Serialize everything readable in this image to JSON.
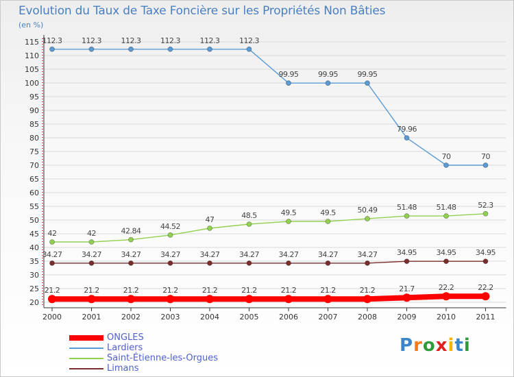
{
  "chart_data": {
    "type": "line",
    "title": "Evolution du Taux de Taxe Foncière sur les Propriétés Non Bâties",
    "unit_label": "(en %)",
    "xlabel": "",
    "ylabel": "",
    "ylim": [
      20,
      115
    ],
    "y_ticks": [
      20,
      25,
      30,
      35,
      40,
      45,
      50,
      55,
      60,
      65,
      70,
      75,
      80,
      85,
      90,
      95,
      100,
      105,
      110,
      115
    ],
    "categories": [
      "2000",
      "2001",
      "2002",
      "2003",
      "2004",
      "2005",
      "2006",
      "2007",
      "2008",
      "2009",
      "2010",
      "2011"
    ],
    "series": [
      {
        "name": "ONGLES",
        "color": "#ff0000",
        "values": [
          21.2,
          21.2,
          21.2,
          21.2,
          21.2,
          21.2,
          21.2,
          21.2,
          21.2,
          21.7,
          22.2,
          22.2
        ],
        "labels": [
          "21.2",
          "21.2",
          "21.2",
          "21.2",
          "21.2",
          "21.2",
          "21.2",
          "21.2",
          "21.2",
          "21.7",
          "22.2",
          "22.2"
        ]
      },
      {
        "name": "Lardiers",
        "color": "#5b9bd5",
        "values": [
          112.3,
          112.3,
          112.3,
          112.3,
          112.3,
          112.3,
          99.95,
          99.95,
          99.95,
          79.96,
          70,
          70
        ],
        "labels": [
          "112.3",
          "112.3",
          "112.3",
          "112.3",
          "112.3",
          "112.3",
          "99.95",
          "99.95",
          "99.95",
          "79.96",
          "70",
          "70"
        ]
      },
      {
        "name": "Saint-Étienne-les-Orgues",
        "color": "#92d050",
        "values": [
          42,
          42,
          42.84,
          44.52,
          47,
          48.5,
          49.5,
          49.5,
          50.49,
          51.48,
          51.48,
          52.3
        ],
        "labels": [
          "42",
          "42",
          "42.84",
          "44.52",
          "47",
          "48.5",
          "49.5",
          "49.5",
          "50.49",
          "51.48",
          "51.48",
          "52.3"
        ]
      },
      {
        "name": "Limans",
        "color": "#7b2c2c",
        "values": [
          34.27,
          34.27,
          34.27,
          34.27,
          34.27,
          34.27,
          34.27,
          34.27,
          34.27,
          34.95,
          34.95,
          34.95
        ],
        "labels": [
          "34.27",
          "34.27",
          "34.27",
          "34.27",
          "34.27",
          "34.27",
          "34.27",
          "34.27",
          "34.27",
          "34.95",
          "34.95",
          "34.95"
        ]
      }
    ],
    "legend_position": "bottom-left"
  },
  "legend": {
    "items": [
      {
        "label": "ONGLES",
        "color": "#ff0000"
      },
      {
        "label": "Lardiers",
        "color": "#5b9bd5"
      },
      {
        "label": "Saint-Étienne-les-Orgues",
        "color": "#92d050"
      },
      {
        "label": "Limans",
        "color": "#7b2c2c"
      }
    ]
  },
  "logo": {
    "letters": [
      "P",
      "r",
      "o",
      "x",
      "i",
      "t",
      "i"
    ],
    "colors": [
      "#3a86c8",
      "#f07c1e",
      "#2f9a3a",
      "#e02020",
      "#f4b400",
      "#3a86c8",
      "#2f9a3a"
    ]
  }
}
